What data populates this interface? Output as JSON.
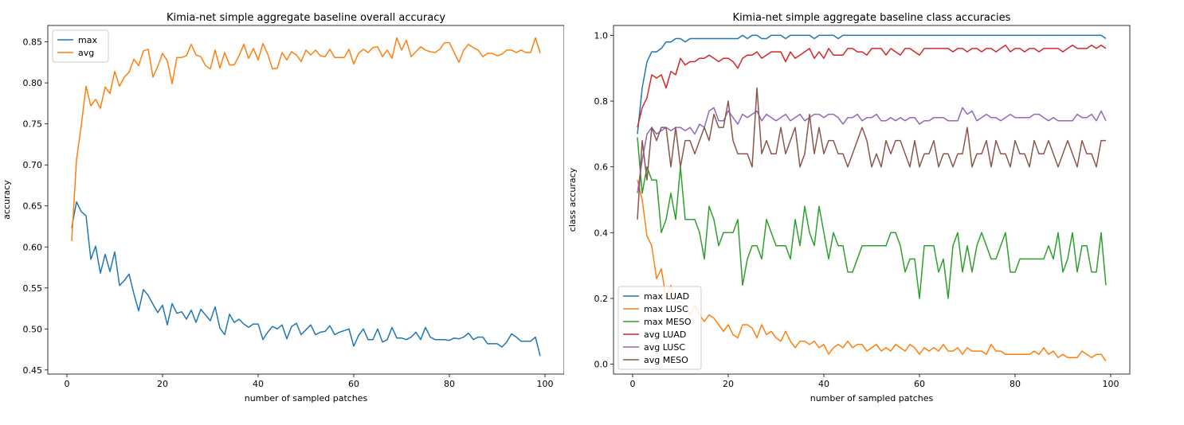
{
  "chart_data": [
    {
      "type": "line",
      "title": "Kimia-net simple aggregate baseline overall accuracy",
      "xlabel": "number of sampled patches",
      "ylabel": "accuracy",
      "xlim": [
        -4,
        104
      ],
      "ylim": [
        0.445,
        0.87
      ],
      "xticks": [
        0,
        20,
        40,
        60,
        80,
        100
      ],
      "yticks": [
        0.45,
        0.5,
        0.55,
        0.6,
        0.65,
        0.7,
        0.75,
        0.8,
        0.85
      ],
      "ytick_format": "2",
      "legend": "top-left",
      "x": [
        1,
        2,
        3,
        4,
        5,
        6,
        7,
        8,
        9,
        10,
        11,
        12,
        13,
        14,
        15,
        16,
        17,
        18,
        19,
        20,
        21,
        22,
        23,
        24,
        25,
        26,
        27,
        28,
        29,
        30,
        31,
        32,
        33,
        34,
        35,
        36,
        37,
        38,
        39,
        40,
        41,
        42,
        43,
        44,
        45,
        46,
        47,
        48,
        49,
        50,
        51,
        52,
        53,
        54,
        55,
        56,
        57,
        58,
        59,
        60,
        61,
        62,
        63,
        64,
        65,
        66,
        67,
        68,
        69,
        70,
        71,
        72,
        73,
        74,
        75,
        76,
        77,
        78,
        79,
        80,
        81,
        82,
        83,
        84,
        85,
        86,
        87,
        88,
        89,
        90,
        91,
        92,
        93,
        94,
        95,
        96,
        97,
        98,
        99
      ],
      "series": [
        {
          "name": "max",
          "color": "#1f77b4",
          "values": [
            0.623,
            0.655,
            0.643,
            0.638,
            0.585,
            0.601,
            0.568,
            0.591,
            0.57,
            0.594,
            0.553,
            0.559,
            0.567,
            0.543,
            0.522,
            0.548,
            0.541,
            0.53,
            0.52,
            0.529,
            0.505,
            0.531,
            0.519,
            0.521,
            0.512,
            0.523,
            0.508,
            0.524,
            0.517,
            0.51,
            0.527,
            0.501,
            0.493,
            0.518,
            0.508,
            0.512,
            0.506,
            0.502,
            0.506,
            0.506,
            0.487,
            0.496,
            0.503,
            0.5,
            0.505,
            0.488,
            0.503,
            0.507,
            0.493,
            0.499,
            0.505,
            0.493,
            0.496,
            0.497,
            0.504,
            0.493,
            0.496,
            0.498,
            0.5,
            0.479,
            0.492,
            0.5,
            0.487,
            0.487,
            0.5,
            0.484,
            0.487,
            0.502,
            0.489,
            0.489,
            0.487,
            0.49,
            0.496,
            0.487,
            0.502,
            0.49,
            0.487,
            0.487,
            0.487,
            0.486,
            0.489,
            0.488,
            0.49,
            0.495,
            0.487,
            0.49,
            0.49,
            0.482,
            0.482,
            0.482,
            0.478,
            0.484,
            0.494,
            0.49,
            0.485,
            0.485,
            0.485,
            0.49,
            0.467
          ]
        },
        {
          "name": "avg",
          "color": "#ff7f0e",
          "values": [
            0.607,
            0.706,
            0.748,
            0.796,
            0.772,
            0.78,
            0.769,
            0.795,
            0.787,
            0.814,
            0.796,
            0.807,
            0.813,
            0.829,
            0.821,
            0.839,
            0.841,
            0.807,
            0.82,
            0.836,
            0.827,
            0.799,
            0.831,
            0.831,
            0.833,
            0.847,
            0.834,
            0.832,
            0.821,
            0.817,
            0.84,
            0.818,
            0.837,
            0.822,
            0.822,
            0.833,
            0.847,
            0.83,
            0.842,
            0.828,
            0.848,
            0.835,
            0.817,
            0.818,
            0.837,
            0.828,
            0.838,
            0.834,
            0.826,
            0.84,
            0.834,
            0.84,
            0.833,
            0.832,
            0.841,
            0.831,
            0.831,
            0.831,
            0.841,
            0.823,
            0.836,
            0.841,
            0.837,
            0.843,
            0.844,
            0.832,
            0.84,
            0.83,
            0.855,
            0.84,
            0.852,
            0.832,
            0.838,
            0.844,
            0.84,
            0.838,
            0.837,
            0.841,
            0.849,
            0.849,
            0.837,
            0.825,
            0.84,
            0.847,
            0.843,
            0.84,
            0.832,
            0.836,
            0.836,
            0.833,
            0.835,
            0.84,
            0.84,
            0.837,
            0.84,
            0.837,
            0.837,
            0.855,
            0.836
          ]
        }
      ]
    },
    {
      "type": "line",
      "title": "Kimia-net simple aggregate baseline class accuracies",
      "xlabel": "number of sampled patches",
      "ylabel": "class accuracy",
      "xlim": [
        -4,
        104
      ],
      "ylim": [
        -0.03,
        1.03
      ],
      "xticks": [
        0,
        20,
        40,
        60,
        80,
        100
      ],
      "yticks": [
        0.0,
        0.2,
        0.4,
        0.6,
        0.8,
        1.0
      ],
      "ytick_format": "1",
      "legend": "bottom-left",
      "x": [
        1,
        2,
        3,
        4,
        5,
        6,
        7,
        8,
        9,
        10,
        11,
        12,
        13,
        14,
        15,
        16,
        17,
        18,
        19,
        20,
        21,
        22,
        23,
        24,
        25,
        26,
        27,
        28,
        29,
        30,
        31,
        32,
        33,
        34,
        35,
        36,
        37,
        38,
        39,
        40,
        41,
        42,
        43,
        44,
        45,
        46,
        47,
        48,
        49,
        50,
        51,
        52,
        53,
        54,
        55,
        56,
        57,
        58,
        59,
        60,
        61,
        62,
        63,
        64,
        65,
        66,
        67,
        68,
        69,
        70,
        71,
        72,
        73,
        74,
        75,
        76,
        77,
        78,
        79,
        80,
        81,
        82,
        83,
        84,
        85,
        86,
        87,
        88,
        89,
        90,
        91,
        92,
        93,
        94,
        95,
        96,
        97,
        98,
        99
      ],
      "series": [
        {
          "name": "max LUAD",
          "color": "#1f77b4",
          "values": [
            0.7,
            0.84,
            0.92,
            0.95,
            0.95,
            0.96,
            0.98,
            0.98,
            0.99,
            0.99,
            0.98,
            0.99,
            0.99,
            0.99,
            0.99,
            0.99,
            0.99,
            0.99,
            0.99,
            0.99,
            0.99,
            0.99,
            1.0,
            0.99,
            1.0,
            1.0,
            0.99,
            0.99,
            1.0,
            1.0,
            1.0,
            0.99,
            1.0,
            1.0,
            1.0,
            1.0,
            1.0,
            0.99,
            1.0,
            1.0,
            1.0,
            1.0,
            0.99,
            1.0,
            1.0,
            1.0,
            1.0,
            1.0,
            1.0,
            1.0,
            1.0,
            1.0,
            1.0,
            1.0,
            1.0,
            1.0,
            1.0,
            1.0,
            1.0,
            1.0,
            1.0,
            1.0,
            1.0,
            1.0,
            1.0,
            1.0,
            1.0,
            1.0,
            1.0,
            1.0,
            1.0,
            1.0,
            1.0,
            1.0,
            1.0,
            1.0,
            1.0,
            1.0,
            1.0,
            1.0,
            1.0,
            1.0,
            1.0,
            1.0,
            1.0,
            1.0,
            1.0,
            1.0,
            1.0,
            1.0,
            1.0,
            1.0,
            1.0,
            1.0,
            1.0,
            1.0,
            1.0,
            1.0,
            0.99
          ]
        },
        {
          "name": "max LUSC",
          "color": "#ff7f0e",
          "values": [
            0.56,
            0.5,
            0.39,
            0.36,
            0.26,
            0.29,
            0.2,
            0.24,
            0.19,
            0.19,
            0.18,
            0.15,
            0.18,
            0.15,
            0.13,
            0.15,
            0.14,
            0.12,
            0.1,
            0.12,
            0.09,
            0.08,
            0.12,
            0.12,
            0.11,
            0.08,
            0.12,
            0.09,
            0.1,
            0.08,
            0.07,
            0.1,
            0.07,
            0.05,
            0.07,
            0.07,
            0.06,
            0.07,
            0.05,
            0.06,
            0.03,
            0.05,
            0.06,
            0.05,
            0.07,
            0.05,
            0.06,
            0.06,
            0.04,
            0.05,
            0.06,
            0.04,
            0.05,
            0.04,
            0.06,
            0.05,
            0.04,
            0.06,
            0.05,
            0.03,
            0.05,
            0.04,
            0.05,
            0.04,
            0.06,
            0.04,
            0.04,
            0.05,
            0.03,
            0.05,
            0.04,
            0.04,
            0.04,
            0.03,
            0.06,
            0.04,
            0.04,
            0.03,
            0.03,
            0.03,
            0.03,
            0.03,
            0.03,
            0.04,
            0.03,
            0.05,
            0.03,
            0.04,
            0.02,
            0.03,
            0.02,
            0.02,
            0.02,
            0.04,
            0.03,
            0.02,
            0.03,
            0.03,
            0.01
          ]
        },
        {
          "name": "max MESO",
          "color": "#2ca02c",
          "values": [
            0.69,
            0.52,
            0.6,
            0.56,
            0.56,
            0.4,
            0.44,
            0.52,
            0.44,
            0.6,
            0.44,
            0.44,
            0.44,
            0.4,
            0.32,
            0.48,
            0.44,
            0.36,
            0.4,
            0.4,
            0.4,
            0.44,
            0.24,
            0.32,
            0.36,
            0.36,
            0.32,
            0.44,
            0.4,
            0.36,
            0.36,
            0.36,
            0.32,
            0.44,
            0.36,
            0.48,
            0.4,
            0.36,
            0.48,
            0.4,
            0.32,
            0.4,
            0.36,
            0.36,
            0.28,
            0.28,
            0.32,
            0.36,
            0.36,
            0.36,
            0.36,
            0.36,
            0.36,
            0.4,
            0.4,
            0.36,
            0.28,
            0.32,
            0.32,
            0.2,
            0.36,
            0.36,
            0.36,
            0.28,
            0.32,
            0.2,
            0.36,
            0.4,
            0.28,
            0.36,
            0.28,
            0.36,
            0.4,
            0.36,
            0.32,
            0.32,
            0.36,
            0.4,
            0.28,
            0.28,
            0.32,
            0.32,
            0.32,
            0.32,
            0.32,
            0.32,
            0.36,
            0.32,
            0.4,
            0.28,
            0.32,
            0.4,
            0.28,
            0.36,
            0.36,
            0.28,
            0.28,
            0.4,
            0.24
          ]
        },
        {
          "name": "avg LUAD",
          "color": "#d62728",
          "values": [
            0.72,
            0.78,
            0.81,
            0.88,
            0.87,
            0.88,
            0.84,
            0.89,
            0.88,
            0.93,
            0.91,
            0.92,
            0.92,
            0.93,
            0.93,
            0.94,
            0.93,
            0.92,
            0.93,
            0.93,
            0.92,
            0.9,
            0.93,
            0.94,
            0.94,
            0.95,
            0.93,
            0.94,
            0.95,
            0.95,
            0.95,
            0.92,
            0.95,
            0.93,
            0.94,
            0.95,
            0.96,
            0.93,
            0.95,
            0.93,
            0.96,
            0.94,
            0.94,
            0.94,
            0.96,
            0.96,
            0.95,
            0.95,
            0.94,
            0.96,
            0.96,
            0.96,
            0.94,
            0.96,
            0.95,
            0.94,
            0.96,
            0.96,
            0.95,
            0.94,
            0.96,
            0.96,
            0.96,
            0.96,
            0.96,
            0.96,
            0.95,
            0.96,
            0.96,
            0.95,
            0.96,
            0.96,
            0.95,
            0.96,
            0.96,
            0.95,
            0.96,
            0.97,
            0.95,
            0.96,
            0.96,
            0.95,
            0.96,
            0.96,
            0.95,
            0.96,
            0.96,
            0.96,
            0.96,
            0.95,
            0.96,
            0.97,
            0.96,
            0.96,
            0.96,
            0.97,
            0.96,
            0.97,
            0.96
          ]
        },
        {
          "name": "avg LUSC",
          "color": "#9467bd",
          "values": [
            0.52,
            0.62,
            0.7,
            0.72,
            0.7,
            0.71,
            0.72,
            0.71,
            0.72,
            0.72,
            0.71,
            0.72,
            0.7,
            0.73,
            0.72,
            0.77,
            0.78,
            0.74,
            0.74,
            0.77,
            0.75,
            0.73,
            0.76,
            0.75,
            0.76,
            0.77,
            0.74,
            0.76,
            0.75,
            0.74,
            0.75,
            0.76,
            0.74,
            0.75,
            0.76,
            0.74,
            0.75,
            0.76,
            0.76,
            0.75,
            0.76,
            0.76,
            0.75,
            0.73,
            0.75,
            0.75,
            0.76,
            0.74,
            0.75,
            0.75,
            0.76,
            0.74,
            0.74,
            0.75,
            0.74,
            0.75,
            0.74,
            0.75,
            0.75,
            0.73,
            0.74,
            0.74,
            0.75,
            0.75,
            0.75,
            0.74,
            0.74,
            0.74,
            0.78,
            0.76,
            0.77,
            0.74,
            0.75,
            0.76,
            0.75,
            0.75,
            0.74,
            0.75,
            0.76,
            0.75,
            0.75,
            0.75,
            0.75,
            0.76,
            0.76,
            0.75,
            0.74,
            0.75,
            0.74,
            0.74,
            0.74,
            0.74,
            0.76,
            0.75,
            0.75,
            0.76,
            0.74,
            0.77,
            0.74
          ]
        },
        {
          "name": "avg MESO",
          "color": "#8c564b",
          "values": [
            0.44,
            0.68,
            0.56,
            0.72,
            0.68,
            0.72,
            0.72,
            0.6,
            0.72,
            0.6,
            0.68,
            0.68,
            0.64,
            0.68,
            0.72,
            0.68,
            0.76,
            0.72,
            0.72,
            0.8,
            0.68,
            0.64,
            0.64,
            0.64,
            0.6,
            0.84,
            0.64,
            0.68,
            0.64,
            0.64,
            0.72,
            0.64,
            0.68,
            0.72,
            0.6,
            0.64,
            0.76,
            0.64,
            0.72,
            0.64,
            0.68,
            0.68,
            0.64,
            0.64,
            0.6,
            0.64,
            0.68,
            0.72,
            0.68,
            0.6,
            0.64,
            0.6,
            0.68,
            0.64,
            0.68,
            0.68,
            0.64,
            0.6,
            0.68,
            0.6,
            0.64,
            0.64,
            0.68,
            0.6,
            0.64,
            0.64,
            0.6,
            0.64,
            0.64,
            0.72,
            0.6,
            0.64,
            0.64,
            0.68,
            0.6,
            0.68,
            0.64,
            0.64,
            0.6,
            0.68,
            0.64,
            0.64,
            0.6,
            0.68,
            0.64,
            0.64,
            0.68,
            0.64,
            0.6,
            0.64,
            0.68,
            0.64,
            0.6,
            0.68,
            0.64,
            0.64,
            0.6,
            0.68,
            0.68
          ]
        }
      ]
    }
  ]
}
